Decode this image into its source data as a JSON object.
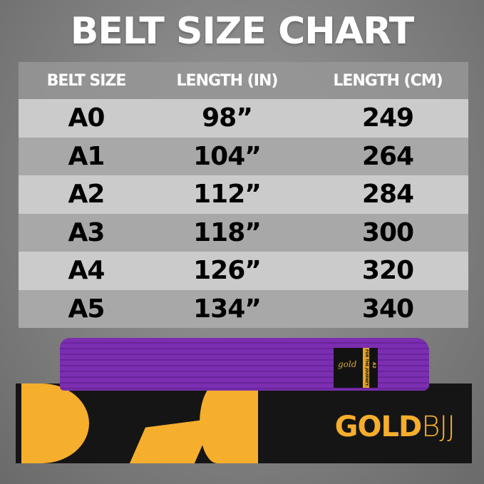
{
  "title": "BELT SIZE CHART",
  "headers": [
    "BELT SIZE",
    "LENGTH (IN)",
    "LENGTH (CM)"
  ],
  "rows": [
    {
      "size": "A0",
      "in": "98”",
      "cm": "249"
    },
    {
      "size": "A1",
      "in": "104”",
      "cm": "264"
    },
    {
      "size": "A2",
      "in": "112”",
      "cm": "284"
    },
    {
      "size": "A3",
      "in": "118”",
      "cm": "300"
    },
    {
      "size": "A4",
      "in": "126”",
      "cm": "320"
    },
    {
      "size": "A5",
      "in": "134”",
      "cm": "340"
    }
  ],
  "product": {
    "belt_label_script": "gold",
    "belt_label_tagline": "FOR THE JOURNEY.",
    "belt_label_size": "A2",
    "brand_bold": "GOLD",
    "brand_light": "BJJ",
    "belt_color": "#7b2fb0",
    "brand_color": "#f6ae2d"
  }
}
